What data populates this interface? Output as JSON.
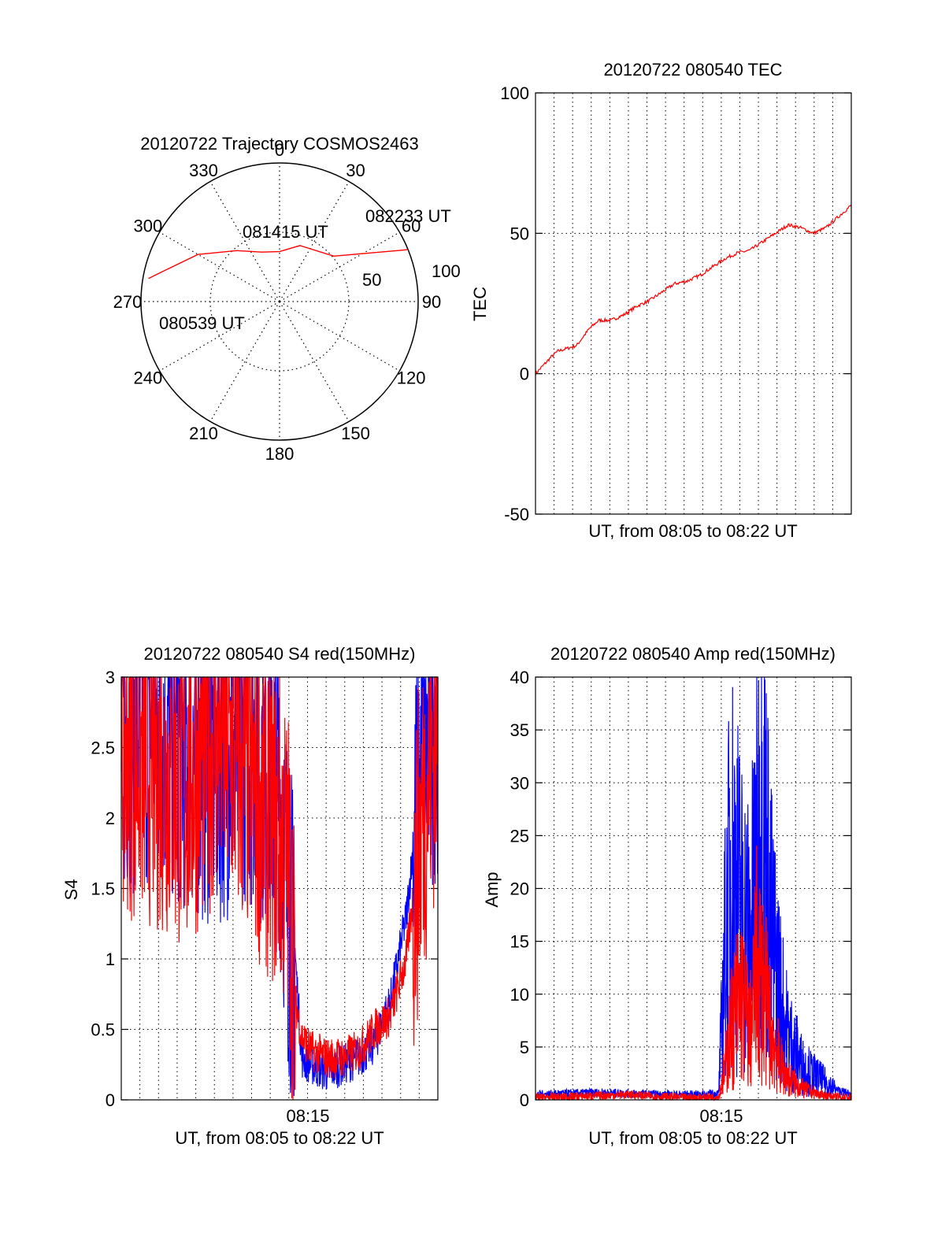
{
  "colors": {
    "red": "#ff0000",
    "blue": "#0000ff",
    "axis": "#000000",
    "grid": "#000000"
  },
  "chart_data": [
    {
      "id": "polar",
      "type": "scatter",
      "title": "20120722 Trajectory COSMOS2463",
      "projection": "polar",
      "angle_ticks": [
        "0",
        "30",
        "60",
        "90",
        "120",
        "150",
        "180",
        "210",
        "240",
        "270",
        "300",
        "330"
      ],
      "radial_ticks": [
        "50",
        "100"
      ],
      "radial_range": [
        0,
        100
      ],
      "labels": [
        "082233 UT",
        "081415 UT",
        "080539 UT"
      ],
      "series": [
        {
          "color": "red",
          "points": [
            [
              68,
              100
            ],
            [
              50,
              51
            ],
            [
              20,
              43
            ],
            [
              0,
              36
            ],
            [
              -20,
              38
            ],
            [
              -40,
              48
            ],
            [
              -60,
              68
            ],
            [
              -75,
              86
            ],
            [
              -80,
              96
            ]
          ]
        }
      ],
      "grid": true
    },
    {
      "id": "tec",
      "type": "line",
      "title": "20120722 080540 TEC",
      "ylabel": "TEC",
      "xlabel": "UT, from 08:05 to 08:22 UT",
      "ylim": [
        -50,
        100
      ],
      "yticks": [
        "-50",
        "0",
        "50",
        "100"
      ],
      "grid": true,
      "series": [
        {
          "color": "red",
          "x": [
            0,
            0.05,
            0.07,
            0.1,
            0.13,
            0.17,
            0.2,
            0.24,
            0.28,
            0.32,
            0.36,
            0.4,
            0.44,
            0.48,
            0.52,
            0.56,
            0.6,
            0.64,
            0.68,
            0.72,
            0.76,
            0.8,
            0.84,
            0.88,
            0.92,
            0.95,
            1.0
          ],
          "y": [
            0,
            6,
            8,
            9,
            10,
            16,
            19,
            19,
            21,
            24,
            26,
            29,
            32,
            33,
            35,
            38,
            41,
            43,
            44,
            47,
            50,
            53,
            52,
            50,
            52,
            55,
            60
          ]
        }
      ]
    },
    {
      "id": "s4",
      "type": "line",
      "title": "20120722 080540 S4 red(150MHz)",
      "ylabel": "S4",
      "xlabel": "UT, from 08:05 to 08:22 UT",
      "xtick_label": "08:15",
      "ylim": [
        0,
        3
      ],
      "yticks": [
        "0",
        "0.5",
        "1",
        "1.5",
        "2",
        "2.5",
        "3"
      ],
      "grid": true,
      "series": [
        {
          "color": "blue",
          "x": [
            0,
            0.1,
            0.2,
            0.3,
            0.4,
            0.5,
            0.53,
            0.55,
            0.57,
            0.6,
            0.65,
            0.7,
            0.75,
            0.8,
            0.85,
            0.9,
            0.95,
            1.0
          ],
          "y": [
            2.6,
            2.7,
            2.5,
            2.4,
            2.6,
            2.2,
            1.3,
            1.0,
            0.3,
            0.25,
            0.2,
            0.25,
            0.3,
            0.4,
            0.7,
            1.3,
            2.4,
            2.8
          ]
        },
        {
          "color": "red",
          "x": [
            0,
            0.1,
            0.2,
            0.3,
            0.4,
            0.5,
            0.53,
            0.55,
            0.57,
            0.6,
            0.65,
            0.7,
            0.75,
            0.8,
            0.85,
            0.9,
            0.95,
            1.0
          ],
          "y": [
            2.5,
            2.4,
            2.2,
            2.6,
            2.3,
            1.9,
            1.6,
            0.7,
            0.45,
            0.35,
            0.3,
            0.3,
            0.35,
            0.5,
            0.6,
            1.0,
            2.0,
            2.7
          ]
        }
      ]
    },
    {
      "id": "amp",
      "type": "line",
      "title": "20120722 080540 Amp red(150MHz)",
      "ylabel": "Amp",
      "xlabel": "UT, from 08:05 to 08:22 UT",
      "xtick_label": "08:15",
      "ylim": [
        0,
        40
      ],
      "yticks": [
        "0",
        "5",
        "10",
        "15",
        "20",
        "25",
        "30",
        "35",
        "40"
      ],
      "grid": true,
      "series": [
        {
          "color": "blue",
          "x": [
            0,
            0.1,
            0.2,
            0.3,
            0.4,
            0.5,
            0.58,
            0.6,
            0.62,
            0.65,
            0.68,
            0.7,
            0.72,
            0.75,
            0.78,
            0.8,
            0.85,
            0.9,
            0.95,
            1.0
          ],
          "y": [
            0.5,
            0.6,
            0.7,
            0.6,
            0.5,
            0.5,
            0.6,
            14,
            23,
            18,
            15,
            22,
            27,
            15,
            9,
            6,
            3,
            2,
            1,
            0.5
          ]
        },
        {
          "color": "red",
          "x": [
            0,
            0.1,
            0.2,
            0.3,
            0.4,
            0.5,
            0.58,
            0.6,
            0.62,
            0.65,
            0.68,
            0.7,
            0.72,
            0.75,
            0.78,
            0.8,
            0.85,
            0.9,
            0.95,
            1.0
          ],
          "y": [
            0.2,
            0.3,
            0.4,
            0.5,
            0.3,
            0.2,
            0.3,
            3,
            7,
            10,
            6,
            13,
            11,
            6,
            3,
            2,
            1,
            0.5,
            0.3,
            0.2
          ]
        }
      ]
    }
  ]
}
